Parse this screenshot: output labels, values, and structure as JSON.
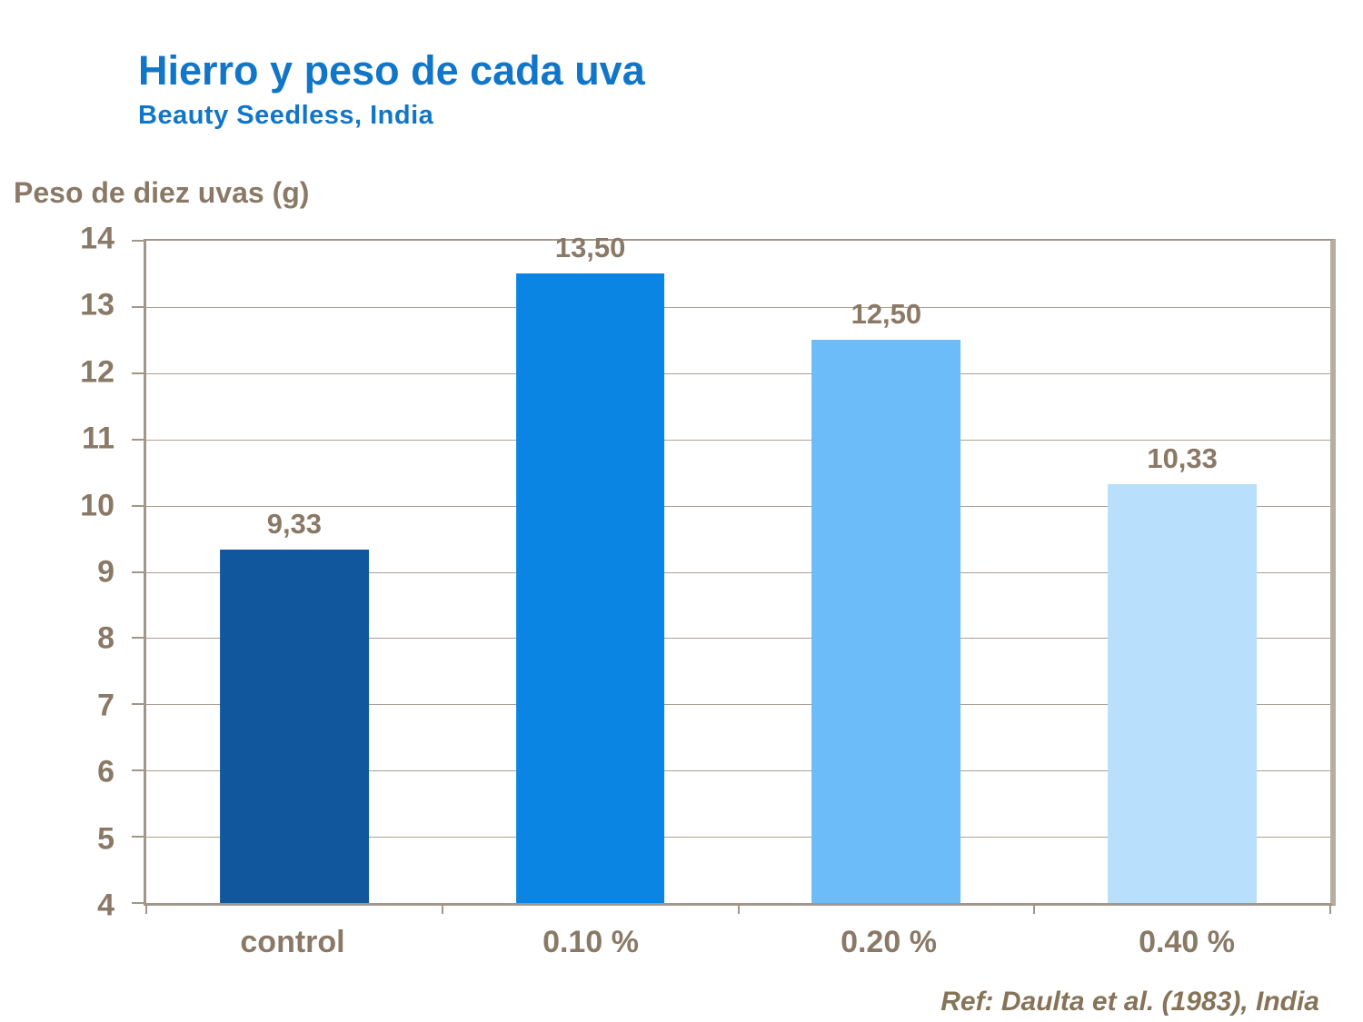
{
  "slide": {
    "title": "Hierro y peso de cada uva",
    "subtitle": "Beauty Seedless, India",
    "y_axis_title": "Peso de diez uvas (g)",
    "reference": "Ref: Daulta et al. (1983), India"
  },
  "colors": {
    "title_blue": "#1276C8",
    "text_brown": "#8A7966",
    "frame": "#A2968A",
    "frame_shadow": "#B7ADA1",
    "gridline": "#ACA092",
    "background": "#FFFFFF"
  },
  "chart_data": {
    "type": "bar",
    "title": "Hierro y peso de cada uva",
    "subtitle": "Beauty Seedless, India",
    "xlabel": "",
    "ylabel": "Peso de diez uvas (g)",
    "categories": [
      "control",
      "0.10 %",
      "0.20 %",
      "0.40 %"
    ],
    "values": [
      9.33,
      13.5,
      12.5,
      10.33
    ],
    "value_labels": [
      "9,33",
      "13,50",
      "12,50",
      "10,33"
    ],
    "bar_colors": [
      "#11579E",
      "#0B85E4",
      "#6BBCF8",
      "#B8DFFB"
    ],
    "ylim": [
      4,
      14
    ],
    "yticks": [
      4,
      5,
      6,
      7,
      8,
      9,
      10,
      11,
      12,
      13,
      14
    ],
    "grid": "horizontal",
    "legend": "none",
    "annotation": "Ref: Daulta et al. (1983), India"
  }
}
